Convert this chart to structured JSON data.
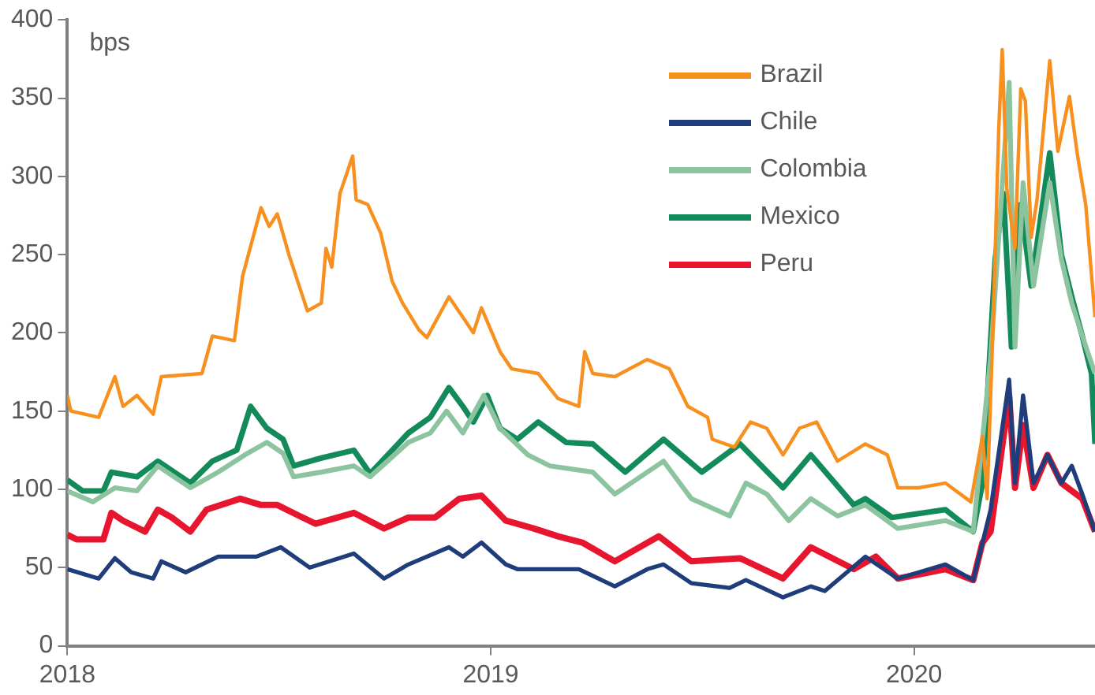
{
  "chart_data": {
    "type": "line",
    "ylabel": "bps",
    "legend": "top right",
    "grid": false,
    "marker": "none",
    "line_style": "solid",
    "xlim": [
      "2018-01-01",
      "2020-06-05"
    ],
    "xticks": [
      "2018",
      "2019",
      "2020"
    ],
    "ylim": [
      0,
      400
    ],
    "yticks": [
      0,
      50,
      100,
      150,
      200,
      250,
      300,
      350,
      400
    ],
    "series": [
      {
        "name": "Brazil",
        "color": "#f7901e",
        "x": [
          "2018-01-01",
          "2018-01-04",
          "2018-01-28",
          "2018-02-11",
          "2018-02-18",
          "2018-03-02",
          "2018-03-16",
          "2018-03-23",
          "2018-04-27",
          "2018-05-06",
          "2018-05-25",
          "2018-06-01",
          "2018-06-17",
          "2018-06-24",
          "2018-07-01",
          "2018-07-11",
          "2018-07-27",
          "2018-08-08",
          "2018-08-12",
          "2018-08-17",
          "2018-08-24",
          "2018-09-04",
          "2018-09-07",
          "2018-09-17",
          "2018-09-28",
          "2018-10-08",
          "2018-10-17",
          "2018-10-31",
          "2018-11-07",
          "2018-11-26",
          "2018-12-08",
          "2018-12-17",
          "2018-12-24",
          "2019-01-09",
          "2019-01-19",
          "2019-02-11",
          "2019-02-28",
          "2019-03-18",
          "2019-03-23",
          "2019-03-30",
          "2019-04-18",
          "2019-05-16",
          "2019-06-04",
          "2019-06-20",
          "2019-07-07",
          "2019-07-11",
          "2019-07-30",
          "2019-08-13",
          "2019-08-27",
          "2019-09-10",
          "2019-09-24",
          "2019-10-09",
          "2019-10-27",
          "2019-11-20",
          "2019-12-09",
          "2019-12-18",
          "2020-01-05",
          "2020-01-28",
          "2020-02-19",
          "2020-02-29",
          "2020-03-04",
          "2020-03-09",
          "2020-03-14",
          "2020-03-17",
          "2020-03-21",
          "2020-03-28",
          "2020-04-02",
          "2020-04-06",
          "2020-04-11",
          "2020-04-16",
          "2020-04-27",
          "2020-05-04",
          "2020-05-14",
          "2020-05-21",
          "2020-05-28",
          "2020-06-05"
        ],
        "values": [
          160,
          150,
          146,
          172,
          153,
          160,
          148,
          172,
          174,
          198,
          195,
          236,
          280,
          268,
          276,
          250,
          214,
          219,
          254,
          242,
          289,
          313,
          285,
          282,
          264,
          233,
          219,
          202,
          197,
          223,
          210,
          200,
          216,
          188,
          177,
          174,
          158,
          153,
          188,
          174,
          172,
          183,
          177,
          153,
          146,
          132,
          127,
          143,
          139,
          122,
          139,
          143,
          118,
          129,
          122,
          101,
          101,
          104,
          92,
          134,
          94,
          202,
          330,
          381,
          292,
          254,
          356,
          348,
          261,
          285,
          374,
          316,
          351,
          313,
          282,
          210
        ]
      },
      {
        "name": "Chile",
        "color": "#1f3d7a",
        "x": [
          "2018-01-01",
          "2018-01-28",
          "2018-02-11",
          "2018-02-25",
          "2018-03-16",
          "2018-03-23",
          "2018-04-13",
          "2018-05-11",
          "2018-06-13",
          "2018-07-04",
          "2018-07-29",
          "2018-09-05",
          "2018-10-01",
          "2018-10-22",
          "2018-11-26",
          "2018-12-08",
          "2018-12-24",
          "2019-01-14",
          "2019-01-24",
          "2019-02-11",
          "2019-03-18",
          "2019-04-18",
          "2019-05-16",
          "2019-05-30",
          "2019-06-23",
          "2019-07-26",
          "2019-08-09",
          "2019-09-10",
          "2019-10-04",
          "2019-10-16",
          "2019-11-20",
          "2019-12-18",
          "2020-01-28",
          "2020-02-21",
          "2020-02-29",
          "2020-03-07",
          "2020-03-23",
          "2020-03-28",
          "2020-04-04",
          "2020-04-13",
          "2020-04-25",
          "2020-05-07",
          "2020-05-16",
          "2020-05-25",
          "2020-06-05"
        ],
        "values": [
          49,
          43,
          56,
          47,
          43,
          54,
          47,
          57,
          57,
          63,
          50,
          59,
          43,
          52,
          63,
          57,
          66,
          52,
          49,
          49,
          49,
          38,
          49,
          52,
          40,
          37,
          42,
          31,
          38,
          35,
          57,
          43,
          52,
          42,
          66,
          87,
          170,
          104,
          160,
          104,
          122,
          104,
          115,
          97,
          73
        ]
      },
      {
        "name": "Colombia",
        "color": "#8cc4a0",
        "x": [
          "2018-01-01",
          "2018-01-23",
          "2018-02-11",
          "2018-03-02",
          "2018-03-20",
          "2018-04-17",
          "2018-05-11",
          "2018-06-03",
          "2018-06-22",
          "2018-07-06",
          "2018-07-15",
          "2018-08-08",
          "2018-09-05",
          "2018-09-19",
          "2018-10-22",
          "2018-11-10",
          "2018-11-24",
          "2018-12-08",
          "2018-12-26",
          "2019-01-09",
          "2019-02-02",
          "2019-02-21",
          "2019-03-30",
          "2019-04-18",
          "2019-05-30",
          "2019-06-23",
          "2019-07-26",
          "2019-08-09",
          "2019-08-27",
          "2019-09-15",
          "2019-10-04",
          "2019-10-27",
          "2019-11-20",
          "2019-12-18",
          "2020-01-28",
          "2020-02-21",
          "2020-03-07",
          "2020-03-23",
          "2020-03-28",
          "2020-04-04",
          "2020-04-13",
          "2020-04-27",
          "2020-05-07",
          "2020-05-16",
          "2020-05-25",
          "2020-06-05"
        ],
        "values": [
          99,
          92,
          101,
          99,
          115,
          101,
          111,
          122,
          130,
          123,
          108,
          111,
          115,
          108,
          130,
          136,
          150,
          136,
          160,
          139,
          122,
          115,
          111,
          97,
          118,
          94,
          83,
          104,
          97,
          80,
          94,
          83,
          90,
          75,
          80,
          73,
          184,
          360,
          191,
          296,
          230,
          296,
          247,
          219,
          198,
          174
        ]
      },
      {
        "name": "Mexico",
        "color": "#138a5a",
        "x": [
          "2018-01-01",
          "2018-01-14",
          "2018-02-01",
          "2018-02-08",
          "2018-03-02",
          "2018-03-20",
          "2018-04-17",
          "2018-05-06",
          "2018-05-27",
          "2018-06-08",
          "2018-06-22",
          "2018-07-06",
          "2018-07-15",
          "2018-08-08",
          "2018-09-05",
          "2018-09-19",
          "2018-10-22",
          "2018-11-10",
          "2018-11-26",
          "2018-12-08",
          "2018-12-17",
          "2018-12-29",
          "2019-01-09",
          "2019-01-24",
          "2019-02-11",
          "2019-03-07",
          "2019-03-30",
          "2019-04-27",
          "2019-05-30",
          "2019-07-02",
          "2019-08-04",
          "2019-09-10",
          "2019-10-04",
          "2019-11-10",
          "2019-11-20",
          "2019-12-13",
          "2020-01-28",
          "2020-02-21",
          "2020-02-29",
          "2020-03-11",
          "2020-03-18",
          "2020-03-25",
          "2020-04-02",
          "2020-04-11",
          "2020-04-27",
          "2020-05-07",
          "2020-05-16",
          "2020-05-25",
          "2020-06-02",
          "2020-06-05"
        ],
        "values": [
          106,
          99,
          99,
          111,
          108,
          118,
          104,
          118,
          125,
          153,
          139,
          132,
          115,
          120,
          125,
          110,
          136,
          146,
          165,
          153,
          143,
          160,
          139,
          132,
          143,
          130,
          129,
          111,
          132,
          111,
          129,
          101,
          122,
          90,
          94,
          82,
          87,
          73,
          104,
          247,
          289,
          191,
          282,
          230,
          315,
          250,
          223,
          198,
          174,
          129
        ]
      },
      {
        "name": "Peru",
        "color": "#e8152e",
        "x": [
          "2018-01-01",
          "2018-01-09",
          "2018-02-01",
          "2018-02-08",
          "2018-02-18",
          "2018-03-09",
          "2018-03-20",
          "2018-04-01",
          "2018-04-17",
          "2018-05-01",
          "2018-05-30",
          "2018-06-17",
          "2018-07-01",
          "2018-07-20",
          "2018-08-03",
          "2018-09-05",
          "2018-10-01",
          "2018-10-22",
          "2018-11-14",
          "2018-12-05",
          "2018-12-24",
          "2019-01-14",
          "2019-02-07",
          "2019-02-28",
          "2019-03-21",
          "2019-04-18",
          "2019-05-26",
          "2019-06-23",
          "2019-08-04",
          "2019-09-10",
          "2019-10-04",
          "2019-11-10",
          "2019-11-29",
          "2019-12-18",
          "2020-01-28",
          "2020-02-21",
          "2020-02-29",
          "2020-03-07",
          "2020-03-23",
          "2020-03-28",
          "2020-04-04",
          "2020-04-13",
          "2020-04-25",
          "2020-05-07",
          "2020-05-25",
          "2020-06-05"
        ],
        "values": [
          71,
          68,
          68,
          85,
          80,
          73,
          87,
          82,
          73,
          87,
          94,
          90,
          90,
          83,
          78,
          85,
          75,
          82,
          82,
          94,
          96,
          80,
          75,
          70,
          66,
          54,
          70,
          54,
          56,
          43,
          63,
          49,
          57,
          43,
          49,
          42,
          66,
          73,
          160,
          101,
          141,
          101,
          122,
          104,
          94,
          73
        ]
      }
    ]
  }
}
